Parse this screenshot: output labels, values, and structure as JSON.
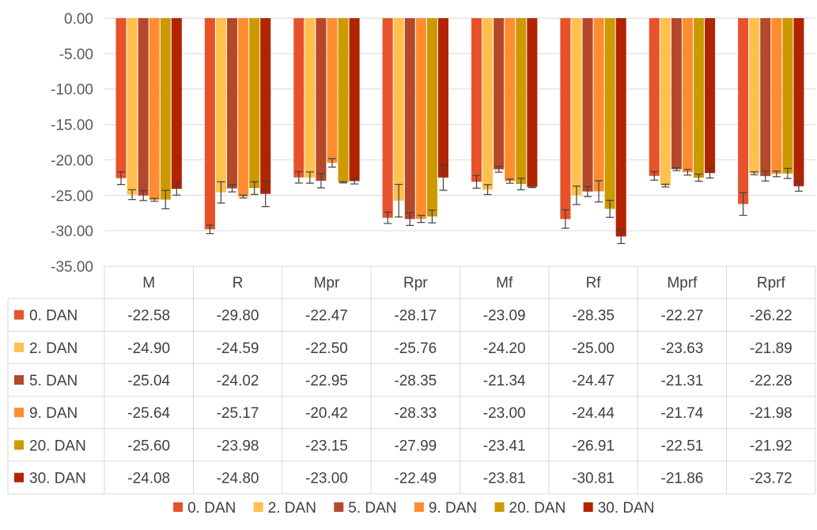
{
  "chart_data": {
    "type": "bar",
    "title": "",
    "xlabel": "",
    "ylabel": "",
    "ylim": [
      -35,
      0
    ],
    "yticks": [
      "0.00",
      "-5.00",
      "-10.00",
      "-15.00",
      "-20.00",
      "-25.00",
      "-30.00",
      "-35.00"
    ],
    "grid": true,
    "legend_position": "bottom",
    "data_table": true,
    "categories": [
      "M",
      "R",
      "Mpr",
      "Rpr",
      "Mf",
      "Rf",
      "Mprf",
      "Rprf"
    ],
    "series": [
      {
        "name": "0. DAN",
        "color": "#e8522b",
        "values": [
          -22.58,
          -29.8,
          -22.47,
          -28.17,
          -23.09,
          -28.35,
          -22.27,
          -26.22
        ],
        "labels": [
          "-22.58",
          "-29.80",
          "-22.47",
          "-28.17",
          "-23.09",
          "-28.35",
          "-22.27",
          "-26.22"
        ],
        "errors": [
          0.9,
          0.6,
          0.8,
          0.8,
          0.9,
          1.3,
          0.6,
          1.6
        ]
      },
      {
        "name": "2. DAN",
        "color": "#ffc04d",
        "values": [
          -24.9,
          -24.59,
          -22.5,
          -25.76,
          -24.2,
          -25.0,
          -23.63,
          -21.89
        ],
        "labels": [
          "-24.90",
          "-24.59",
          "-22.50",
          "-25.76",
          "-24.20",
          "-25.00",
          "-23.63",
          "-21.89"
        ],
        "errors": [
          0.7,
          1.5,
          0.8,
          2.3,
          0.7,
          1.3,
          0.2,
          0.2
        ]
      },
      {
        "name": "5. DAN",
        "color": "#b5482a",
        "values": [
          -25.04,
          -24.02,
          -22.95,
          -28.35,
          -21.34,
          -24.47,
          -21.31,
          -22.28
        ],
        "labels": [
          "-25.04",
          "-24.02",
          "-22.95",
          "-28.35",
          "-21.34",
          "-24.47",
          "-21.31",
          "-22.28"
        ],
        "errors": [
          0.7,
          0.5,
          1.0,
          0.9,
          0.4,
          0.7,
          0.2,
          0.7
        ]
      },
      {
        "name": "9. DAN",
        "color": "#ff8c2e",
        "values": [
          -25.64,
          -25.17,
          -20.42,
          -28.33,
          -23.0,
          -24.44,
          -21.74,
          -21.98
        ],
        "labels": [
          "-25.64",
          "-25.17",
          "-20.42",
          "-28.33",
          "-23.00",
          "-24.44",
          "-21.74",
          "-21.98"
        ],
        "errors": [
          0.2,
          0.2,
          0.6,
          0.5,
          0.3,
          1.5,
          0.4,
          0.4
        ]
      },
      {
        "name": "20. DAN",
        "color": "#cc9a00",
        "values": [
          -25.6,
          -23.98,
          -23.15,
          -27.99,
          -23.41,
          -26.91,
          -22.51,
          -21.92
        ],
        "labels": [
          "-25.60",
          "-23.98",
          "-23.15",
          "-27.99",
          "-23.41",
          "-26.91",
          "-22.51",
          "-21.92"
        ],
        "errors": [
          1.3,
          0.9,
          0.1,
          0.9,
          0.8,
          1.2,
          0.5,
          0.7
        ]
      },
      {
        "name": "30. DAN",
        "color": "#b22400",
        "values": [
          -24.08,
          -24.8,
          -23.0,
          -22.49,
          -23.81,
          -30.81,
          -21.86,
          -23.72
        ],
        "labels": [
          "-24.08",
          "-24.80",
          "-23.00",
          "-22.49",
          "-23.81",
          "-30.81",
          "-21.86",
          "-23.72"
        ],
        "errors": [
          0.9,
          1.8,
          0.4,
          1.8,
          0.1,
          1.0,
          0.7,
          0.7
        ]
      }
    ]
  }
}
